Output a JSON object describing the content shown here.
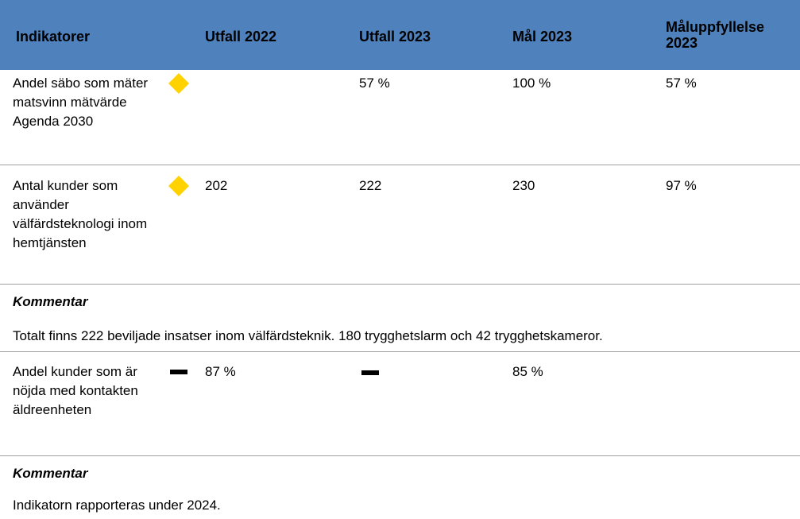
{
  "table": {
    "header": [
      "Indikatorer",
      "Utfall 2022",
      "Utfall 2023",
      "Mål 2023",
      "Måluppfyllelse 2023"
    ],
    "rows": [
      {
        "name": "Andel säbo som mäter matsvinn mätvärde Agenda 2030",
        "utfall_2022": "",
        "utfall_2023": "57 %",
        "mal_2023": "100 %",
        "maluppfyllelse": "57 %"
      },
      {
        "name": "Antal kunder som använder välfärdsteknologi inom hemtjänsten",
        "utfall_2022": "202",
        "utfall_2023": "222",
        "mal_2023": "230",
        "maluppfyllelse": "97 %",
        "comment_title": "Kommentar",
        "comment": "Totalt finns 222 beviljade insatser inom välfärdsteknik. 180 trygghetslarm och 42 trygghetskameror."
      },
      {
        "name": "Andel kunder som är nöjda med kontakten äldreenheten",
        "utfall_2022": "87 %",
        "utfall_2023": "",
        "mal_2023": "85 %",
        "maluppfyllelse": "",
        "comment_title": "Kommentar",
        "comment": "Indikatorn rapporteras under 2024."
      }
    ]
  }
}
